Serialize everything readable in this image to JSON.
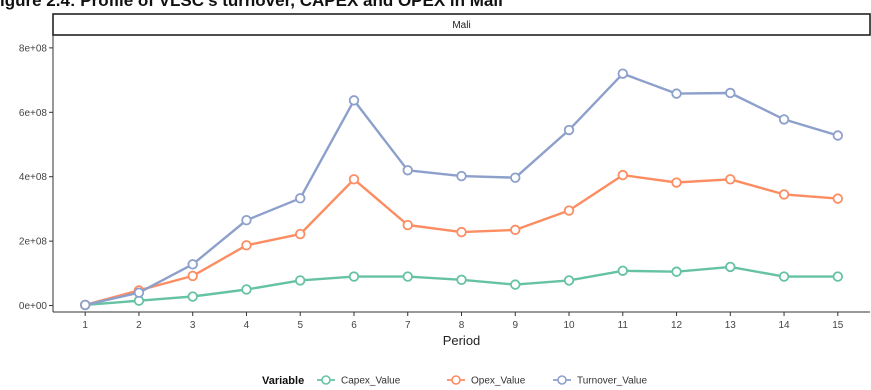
{
  "figure_title": "igure 2.4: Profile of VLSC's turnover, CAPEX and OPEX in Mali",
  "colors": {
    "capex": "#66c2a5",
    "opex": "#fc8d62",
    "turnover": "#8da0cb",
    "axis": "#333333",
    "strip_fill": "#ffffff"
  },
  "chart_data": {
    "type": "line",
    "facet_label": "Mali",
    "xlabel": "Period",
    "ylabel": "",
    "x": [
      1,
      2,
      3,
      4,
      5,
      6,
      7,
      8,
      9,
      10,
      11,
      12,
      13,
      14,
      15
    ],
    "ylim": [
      -20000000,
      840000000
    ],
    "yticks": [
      0,
      200000000,
      400000000,
      600000000,
      800000000
    ],
    "ytick_labels": [
      "0e+00",
      "2e+08",
      "4e+08",
      "6e+08",
      "8e+08"
    ],
    "grid": false,
    "legend": {
      "title": "Variable",
      "position": "bottom"
    },
    "series": [
      {
        "name": "Capex_Value",
        "color_key": "capex",
        "values": [
          2000000,
          15000000,
          28000000,
          50000000,
          78000000,
          90000000,
          90000000,
          80000000,
          65000000,
          78000000,
          108000000,
          105000000,
          120000000,
          90000000,
          90000000
        ]
      },
      {
        "name": "Opex_Value",
        "color_key": "opex",
        "values": [
          2000000,
          47000000,
          92000000,
          187000000,
          222000000,
          392000000,
          250000000,
          228000000,
          235000000,
          295000000,
          405000000,
          382000000,
          392000000,
          345000000,
          332000000
        ]
      },
      {
        "name": "Turnover_Value",
        "color_key": "turnover",
        "values": [
          2000000,
          40000000,
          128000000,
          265000000,
          333000000,
          637000000,
          420000000,
          402000000,
          397000000,
          545000000,
          720000000,
          658000000,
          660000000,
          578000000,
          528000000
        ]
      }
    ]
  }
}
